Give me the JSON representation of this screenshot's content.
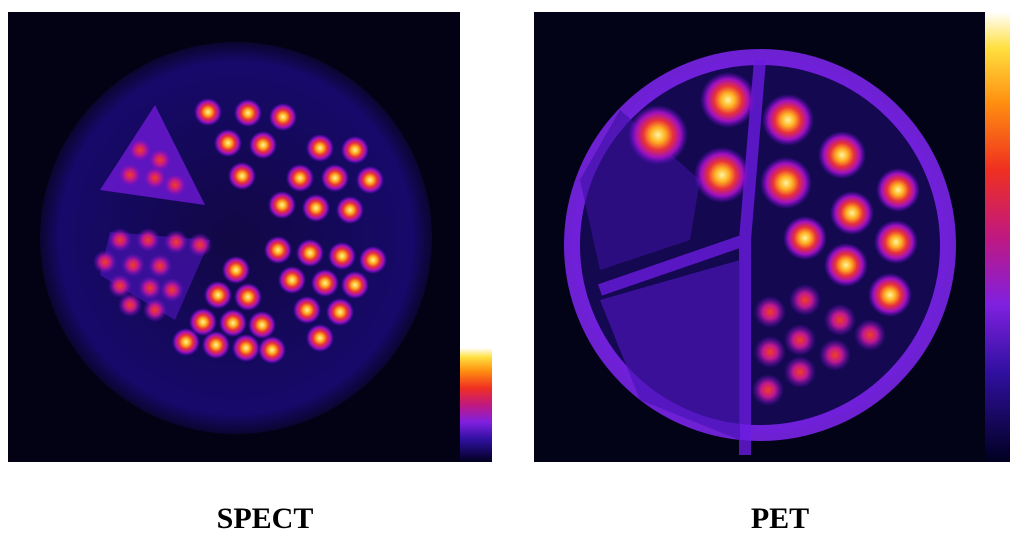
{
  "panels": [
    {
      "label": "SPECT"
    },
    {
      "label": "PET"
    }
  ]
}
